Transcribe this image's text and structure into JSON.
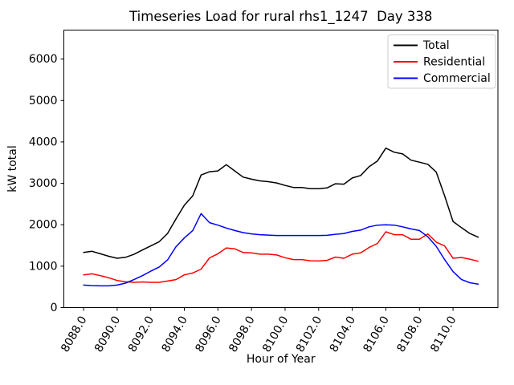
{
  "window": {
    "background": "#ffffff"
  },
  "chart_data": {
    "type": "line",
    "title": "Timeseries Load for rural rhs1_1247  Day 338",
    "xlabel": "Hour of Year",
    "ylabel": "kW total",
    "grid": false,
    "legend_position": "upper right",
    "xlim": [
      8086.825,
      8112.675
    ],
    "ylim": [
      0,
      6700
    ],
    "xtick_values": [
      8088,
      8090,
      8092,
      8094,
      8096,
      8098,
      8100,
      8102,
      8104,
      8106,
      8108,
      8110
    ],
    "xtick_labels": [
      "8088.0",
      "8090.0",
      "8092.0",
      "8094.0",
      "8096.0",
      "8098.0",
      "8100.0",
      "8102.0",
      "8104.0",
      "8106.0",
      "8108.0",
      "8110.0"
    ],
    "xtick_rotation": 60,
    "ytick_values": [
      0,
      1000,
      2000,
      3000,
      4000,
      5000,
      6000
    ],
    "ytick_labels": [
      "0",
      "1000",
      "2000",
      "3000",
      "4000",
      "5000",
      "6000"
    ],
    "x": [
      8088.0,
      8088.5,
      8089.0,
      8089.5,
      8090.0,
      8090.5,
      8091.0,
      8091.5,
      8092.0,
      8092.5,
      8093.0,
      8093.5,
      8094.0,
      8094.5,
      8095.0,
      8095.5,
      8096.0,
      8096.5,
      8097.0,
      8097.5,
      8098.0,
      8098.5,
      8099.0,
      8099.5,
      8100.0,
      8100.5,
      8101.0,
      8101.5,
      8102.0,
      8102.5,
      8103.0,
      8103.5,
      8104.0,
      8104.5,
      8105.0,
      8105.5,
      8106.0,
      8106.5,
      8107.0,
      8107.5,
      8108.0,
      8108.5,
      8109.0,
      8109.5,
      8110.0,
      8110.5,
      8111.0,
      8111.5
    ],
    "series": [
      {
        "name": "Total",
        "color": "#000000",
        "values": [
          1330,
          1360,
          1300,
          1240,
          1190,
          1215,
          1285,
          1390,
          1490,
          1590,
          1790,
          2140,
          2470,
          2700,
          3200,
          3280,
          3300,
          3450,
          3300,
          3150,
          3100,
          3060,
          3040,
          3010,
          2950,
          2900,
          2900,
          2870,
          2870,
          2890,
          2990,
          2980,
          3130,
          3190,
          3400,
          3540,
          3850,
          3750,
          3710,
          3560,
          3510,
          3460,
          3270,
          2700,
          2080,
          1930,
          1790,
          1700
        ]
      },
      {
        "name": "Residential",
        "color": "#ff0000",
        "values": [
          790,
          815,
          770,
          720,
          655,
          625,
          610,
          620,
          610,
          610,
          640,
          675,
          790,
          835,
          930,
          1200,
          1300,
          1440,
          1420,
          1330,
          1320,
          1290,
          1290,
          1270,
          1205,
          1160,
          1160,
          1130,
          1125,
          1140,
          1220,
          1190,
          1290,
          1320,
          1450,
          1550,
          1830,
          1760,
          1760,
          1650,
          1650,
          1780,
          1580,
          1490,
          1190,
          1210,
          1170,
          1120
        ]
      },
      {
        "name": "Commercial",
        "color": "#0000ff",
        "values": [
          545,
          530,
          525,
          525,
          545,
          590,
          675,
          770,
          880,
          980,
          1150,
          1470,
          1680,
          1860,
          2270,
          2050,
          1990,
          1920,
          1860,
          1810,
          1780,
          1760,
          1750,
          1741,
          1740,
          1740,
          1740,
          1740,
          1740,
          1745,
          1770,
          1790,
          1840,
          1870,
          1950,
          1990,
          2000,
          1990,
          1950,
          1900,
          1860,
          1710,
          1480,
          1160,
          870,
          680,
          600,
          565
        ]
      }
    ]
  }
}
